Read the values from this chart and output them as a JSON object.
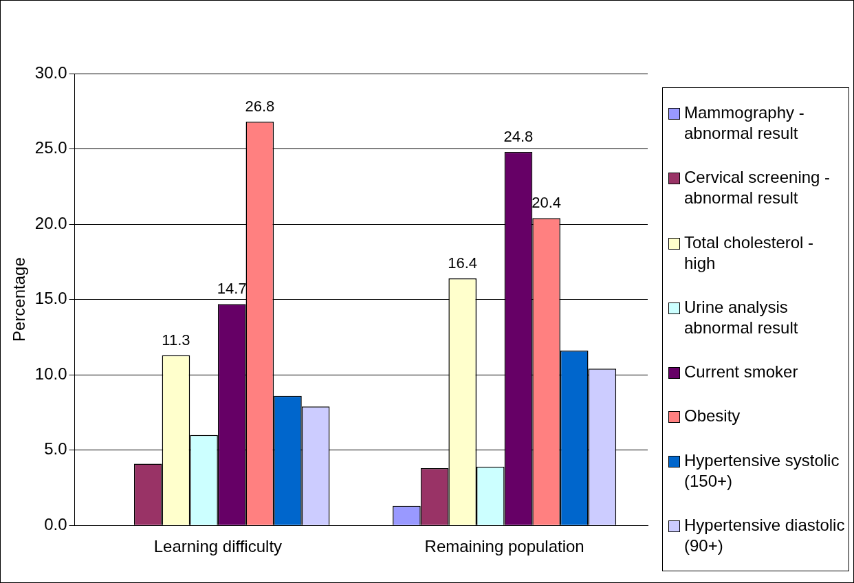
{
  "chart_data": {
    "type": "bar",
    "ylabel": "Percentage",
    "categories": [
      "Learning difficulty",
      "Remaining population"
    ],
    "series": [
      {
        "name": "Mammography - abnormal result",
        "color": "#9999ff",
        "values": [
          0,
          1.3
        ]
      },
      {
        "name": "Cervical screening - abnormal result",
        "color": "#993366",
        "values": [
          4.1,
          3.8
        ]
      },
      {
        "name": "Total cholesterol - high",
        "color": "#ffffcc",
        "values": [
          11.3,
          16.4
        ],
        "value_labels": [
          "11.3",
          "16.4"
        ]
      },
      {
        "name": "Urine analysis abnormal result",
        "color": "#ccffff",
        "values": [
          6.0,
          3.9
        ]
      },
      {
        "name": "Current smoker",
        "color": "#660066",
        "values": [
          14.7,
          24.8
        ],
        "value_labels": [
          "14.7",
          "24.8"
        ]
      },
      {
        "name": "Obesity",
        "color": "#ff8080",
        "values": [
          26.8,
          20.4
        ],
        "value_labels": [
          "26.8",
          "20.4"
        ]
      },
      {
        "name": "Hypertensive systolic (150+)",
        "color": "#0066cc",
        "values": [
          8.6,
          11.6
        ]
      },
      {
        "name": "Hypertensive diastolic (90+)",
        "color": "#ccccff",
        "values": [
          7.9,
          10.4
        ]
      }
    ],
    "ylim": [
      0,
      30
    ],
    "yticks": [
      {
        "value": 0,
        "label": "0.0"
      },
      {
        "value": 5,
        "label": "5.0"
      },
      {
        "value": 10,
        "label": "10.0"
      },
      {
        "value": 15,
        "label": "15.0"
      },
      {
        "value": 20,
        "label": "20.0"
      },
      {
        "value": 25,
        "label": "25.0"
      },
      {
        "value": 30,
        "label": "30.0"
      }
    ],
    "grid": "y",
    "legend": "right"
  }
}
